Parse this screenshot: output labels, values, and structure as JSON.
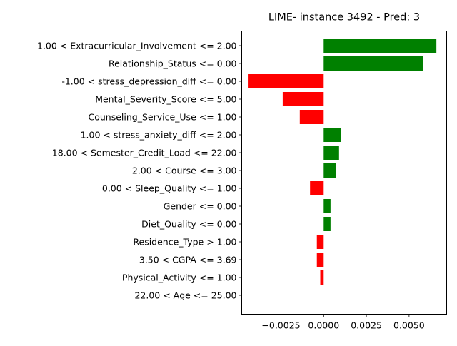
{
  "chart_data": {
    "type": "bar",
    "orientation": "horizontal",
    "title": "LIME- instance 3492 - Pred: 3",
    "xlabel": "",
    "ylabel": "",
    "categories": [
      "1.00 < Extracurricular_Involvement <= 2.00",
      "Relationship_Status <= 0.00",
      "-1.00 < stress_depression_diff <= 0.00",
      "Mental_Severity_Score <= 5.00",
      "Counseling_Service_Use <= 1.00",
      "1.00 < stress_anxiety_diff <= 2.00",
      "18.00 < Semester_Credit_Load <= 22.00",
      "2.00 < Course <= 3.00",
      "0.00 < Sleep_Quality <= 1.00",
      "Gender <= 0.00",
      "Diet_Quality <= 0.00",
      "Residence_Type > 1.00",
      "3.50 < CGPA <= 3.69",
      "Physical_Activity <= 1.00",
      "22.00 < Age <= 25.00"
    ],
    "values": [
      0.0066,
      0.0058,
      -0.0044,
      -0.0024,
      -0.0014,
      0.001,
      0.0009,
      0.0007,
      -0.0008,
      0.0004,
      0.0004,
      -0.0004,
      -0.0004,
      -0.0002,
      0.0
    ],
    "xlim": [
      -0.0048,
      0.0072
    ],
    "xticks": [
      -0.0025,
      0.0,
      0.0025,
      0.005
    ],
    "xtick_labels": [
      "−0.0025",
      "0.0000",
      "0.0025",
      "0.0050"
    ],
    "colors": {
      "positive": "#008000",
      "negative": "#ff0000"
    },
    "grid": false,
    "legend": "none"
  }
}
